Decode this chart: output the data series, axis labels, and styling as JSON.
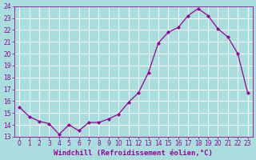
{
  "x": [
    0,
    1,
    2,
    3,
    4,
    5,
    6,
    7,
    8,
    9,
    10,
    11,
    12,
    13,
    14,
    15,
    16,
    17,
    18,
    19,
    20,
    21,
    22,
    23
  ],
  "y": [
    15.5,
    14.7,
    14.3,
    14.1,
    13.2,
    14.0,
    13.5,
    14.2,
    14.2,
    14.5,
    14.9,
    15.9,
    16.7,
    18.4,
    20.9,
    21.8,
    22.2,
    23.2,
    23.8,
    23.2,
    22.1,
    21.4,
    20.0,
    16.7
  ],
  "line_color": "#990099",
  "marker": "D",
  "markersize": 2.0,
  "linewidth": 0.9,
  "xlabel": "Windchill (Refroidissement éolien,°C)",
  "xlabel_fontsize": 6.5,
  "bg_color": "#aadddd",
  "grid_color": "#bbdddd",
  "ylim": [
    13,
    24
  ],
  "xlim": [
    -0.5,
    23.5
  ],
  "yticks": [
    13,
    14,
    15,
    16,
    17,
    18,
    19,
    20,
    21,
    22,
    23,
    24
  ],
  "xticks": [
    0,
    1,
    2,
    3,
    4,
    5,
    6,
    7,
    8,
    9,
    10,
    11,
    12,
    13,
    14,
    15,
    16,
    17,
    18,
    19,
    20,
    21,
    22,
    23
  ],
  "tick_fontsize": 5.5,
  "tick_color": "#990099",
  "label_color": "#990099",
  "spine_color": "#990099"
}
